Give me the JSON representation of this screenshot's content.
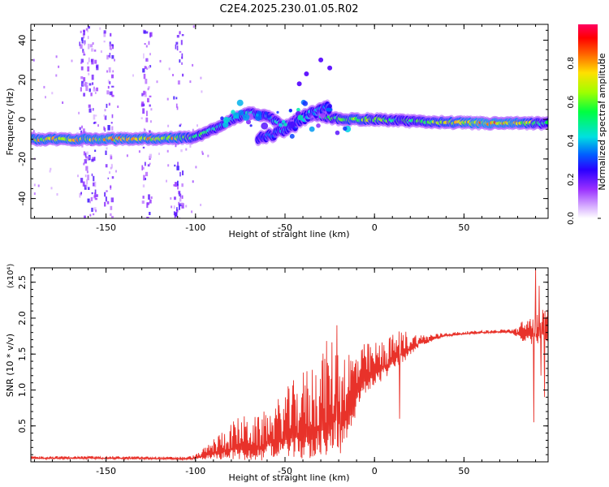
{
  "page_title": "C2E4.2025.230.01.05.R02",
  "chart_data": [
    {
      "type": "heatmap",
      "title": "C2E4.2025.230.01.05.R02",
      "xlabel": "Height of straight line (km)",
      "ylabel": "Frequency (Hz)",
      "xlim": [
        -192,
        97
      ],
      "ylim": [
        -50,
        48
      ],
      "x_ticks": [
        -150,
        -100,
        -50,
        0,
        50
      ],
      "y_ticks": [
        -40,
        -20,
        0,
        20,
        40
      ],
      "x_tick_labels": [
        "-150",
        "-100",
        "-50",
        "0",
        "50"
      ],
      "y_tick_labels": [
        "-40",
        "-20",
        "0",
        "20",
        "40"
      ],
      "colorbar": {
        "label": "Normalized spectral amplitude",
        "range": [
          0,
          1
        ],
        "ticks": [
          0.0,
          0.2,
          0.4,
          0.6,
          0.8
        ],
        "tick_labels": [
          "0.0",
          "0.2",
          "0.4",
          "0.6",
          "0.8"
        ],
        "colormap": [
          "#ffffff",
          "#c080ff",
          "#8000ff",
          "#0000ff",
          "#00c8ff",
          "#00ff80",
          "#40ff00",
          "#ffff00",
          "#ff8000",
          "#ff0000",
          "#ff0050"
        ]
      },
      "main_track": [
        {
          "x": -192,
          "freq": -10.0,
          "amp": 0.75
        },
        {
          "x": -150,
          "freq": -10.0,
          "amp": 0.8
        },
        {
          "x": -110,
          "freq": -9.5,
          "amp": 0.75
        },
        {
          "x": -100,
          "freq": -9.0,
          "amp": 0.6
        },
        {
          "x": -90,
          "freq": -5.0,
          "amp": 0.5
        },
        {
          "x": -80,
          "freq": 0.0,
          "amp": 0.45
        },
        {
          "x": -70,
          "freq": 3.0,
          "amp": 0.45
        },
        {
          "x": -60,
          "freq": 2.0,
          "amp": 0.35
        },
        {
          "x": -50,
          "freq": -4.0,
          "amp": 0.45
        },
        {
          "x": -40,
          "freq": 2.0,
          "amp": 0.4
        },
        {
          "x": -30,
          "freq": 2.0,
          "amp": 0.45
        },
        {
          "x": -20,
          "freq": 0.0,
          "amp": 0.6
        },
        {
          "x": -10,
          "freq": 0.0,
          "amp": 0.7
        },
        {
          "x": 0,
          "freq": 0.0,
          "amp": 0.6
        },
        {
          "x": 20,
          "freq": -1.0,
          "amp": 0.55
        },
        {
          "x": 40,
          "freq": -1.5,
          "amp": 0.7
        },
        {
          "x": 60,
          "freq": -2.0,
          "amp": 0.85
        },
        {
          "x": 80,
          "freq": -2.0,
          "amp": 0.8
        },
        {
          "x": 97,
          "freq": -2.0,
          "amp": 0.5
        }
      ],
      "branch_track": [
        {
          "x": -65,
          "freq": -10.0,
          "amp": 0.3
        },
        {
          "x": -55,
          "freq": -7.0,
          "amp": 0.35
        },
        {
          "x": -45,
          "freq": -3.0,
          "amp": 0.35
        },
        {
          "x": -35,
          "freq": 3.0,
          "amp": 0.4
        },
        {
          "x": -25,
          "freq": 6.0,
          "amp": 0.35
        }
      ],
      "noise_columns_x": [
        -163,
        -158,
        -149,
        -128,
        -110
      ]
    },
    {
      "type": "line",
      "xlabel": "Height of straight line (km)",
      "ylabel": "SNR (10 * v/v)",
      "y_multiplier": "(x10⁴)",
      "xlim": [
        -192,
        97
      ],
      "ylim": [
        0,
        2.7
      ],
      "x_ticks": [
        -150,
        -100,
        -50,
        0,
        50
      ],
      "x_tick_labels": [
        "-150",
        "-100",
        "-50",
        "0",
        "50"
      ],
      "y_ticks": [
        0.5,
        1.0,
        1.5,
        2.0,
        2.5
      ],
      "y_tick_labels": [
        "0.5",
        "1.0",
        "1.5",
        "2.0",
        "2.5"
      ],
      "series": [
        {
          "color": "#e8322a",
          "envelope": [
            {
              "x": -192,
              "base": 0.05,
              "amp": 0.03
            },
            {
              "x": -150,
              "base": 0.05,
              "amp": 0.03
            },
            {
              "x": -105,
              "base": 0.04,
              "amp": 0.03
            },
            {
              "x": -100,
              "base": 0.05,
              "amp": 0.05
            },
            {
              "x": -95,
              "base": 0.08,
              "amp": 0.12
            },
            {
              "x": -85,
              "base": 0.15,
              "amp": 0.3
            },
            {
              "x": -75,
              "base": 0.2,
              "amp": 0.45
            },
            {
              "x": -65,
              "base": 0.18,
              "amp": 0.45
            },
            {
              "x": -55,
              "base": 0.3,
              "amp": 0.55
            },
            {
              "x": -45,
              "base": 0.35,
              "amp": 0.8
            },
            {
              "x": -35,
              "base": 0.4,
              "amp": 1.0
            },
            {
              "x": -25,
              "base": 0.55,
              "amp": 1.2
            },
            {
              "x": -15,
              "base": 0.7,
              "amp": 0.9
            },
            {
              "x": -5,
              "base": 1.15,
              "amp": 0.5
            },
            {
              "x": 5,
              "base": 1.3,
              "amp": 0.4
            },
            {
              "x": 15,
              "base": 1.5,
              "amp": 0.35
            },
            {
              "x": 25,
              "base": 1.65,
              "amp": 0.12
            },
            {
              "x": 40,
              "base": 1.76,
              "amp": 0.04
            },
            {
              "x": 60,
              "base": 1.8,
              "amp": 0.03
            },
            {
              "x": 75,
              "base": 1.81,
              "amp": 0.04
            },
            {
              "x": 80,
              "base": 1.78,
              "amp": 0.1
            },
            {
              "x": 85,
              "base": 1.75,
              "amp": 0.3
            },
            {
              "x": 97,
              "base": 1.8,
              "amp": 0.35
            }
          ],
          "spikes": [
            {
              "x": -21,
              "y": 1.9
            },
            {
              "x": -19,
              "y": 0.12
            },
            {
              "x": 14,
              "y": 0.6
            },
            {
              "x": 89,
              "y": 0.55
            },
            {
              "x": 90,
              "y": 2.7
            },
            {
              "x": 92,
              "y": 2.45
            },
            {
              "x": 93,
              "y": 1.2
            },
            {
              "x": 95,
              "y": 0.9
            }
          ]
        }
      ]
    }
  ]
}
